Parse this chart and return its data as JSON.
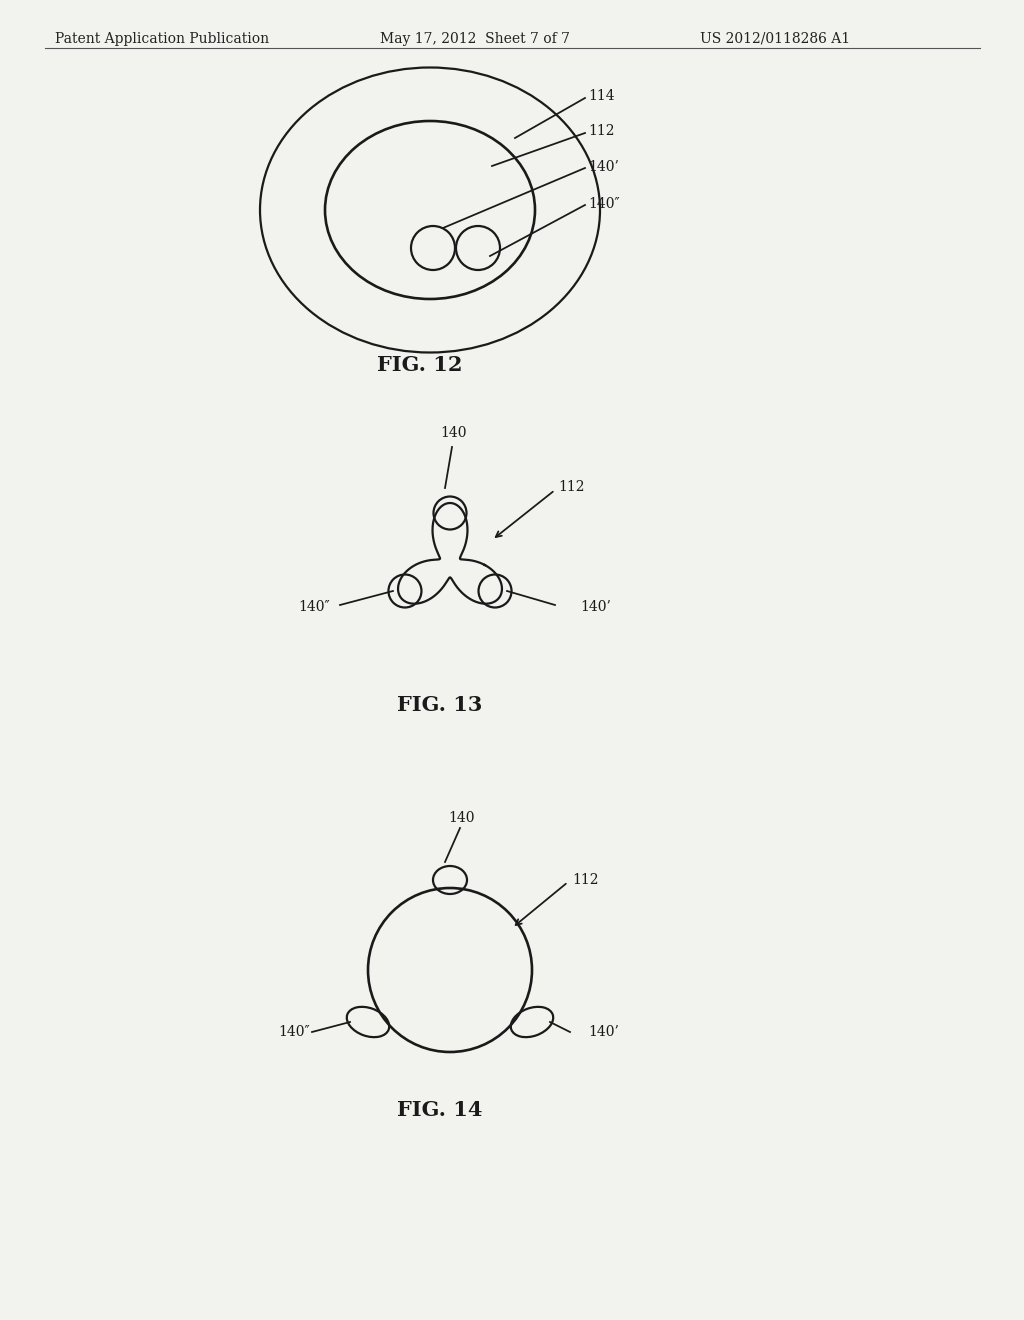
{
  "bg_color": "#f2f2ee",
  "header_left": "Patent Application Publication",
  "header_mid": "May 17, 2012  Sheet 7 of 7",
  "header_right": "US 2012/0118286 A1",
  "header_fontsize": 10,
  "fig12_label": "FIG. 12",
  "fig13_label": "FIG. 13",
  "fig14_label": "FIG. 14",
  "line_color": "#1a1a1a",
  "line_width": 1.6
}
